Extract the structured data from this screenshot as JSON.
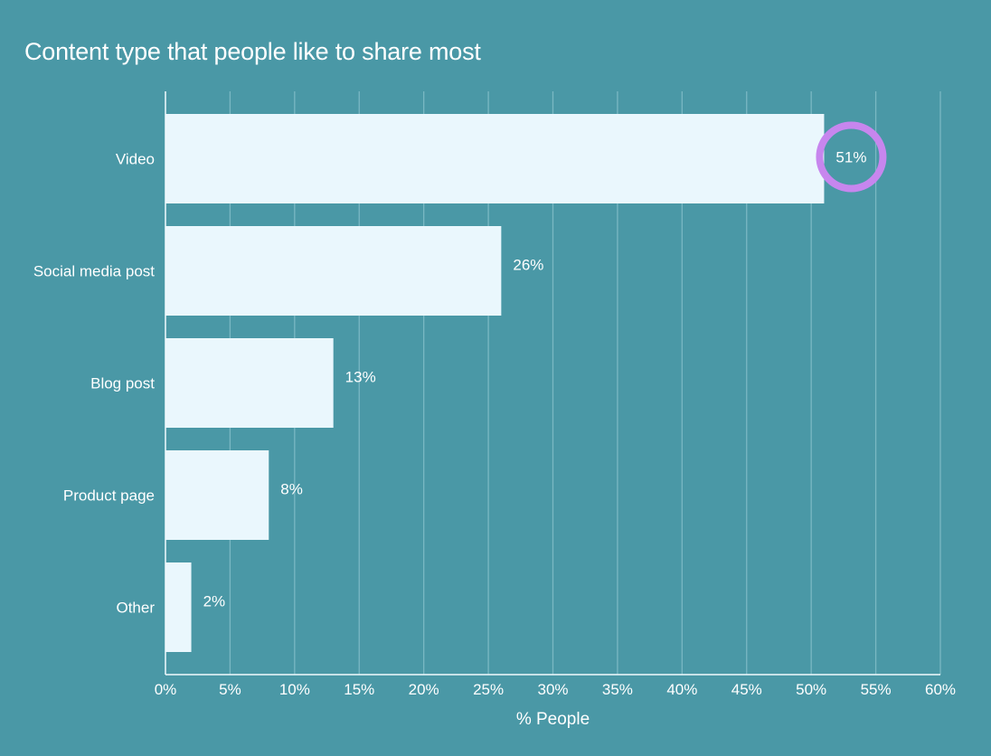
{
  "chart_data": {
    "type": "bar",
    "orientation": "horizontal",
    "title": "Content type that people like to share most",
    "xlabel": "% People",
    "ylabel": "",
    "categories": [
      "Video",
      "Social media post",
      "Blog post",
      "Product page",
      "Other"
    ],
    "values": [
      51,
      26,
      13,
      8,
      2
    ],
    "data_labels": [
      "51%",
      "26%",
      "13%",
      "8%",
      "2%"
    ],
    "xlim": [
      0,
      60
    ],
    "xticks": [
      0,
      5,
      10,
      15,
      20,
      25,
      30,
      35,
      40,
      45,
      50,
      55,
      60
    ],
    "xtick_labels": [
      "0%",
      "5%",
      "10%",
      "15%",
      "20%",
      "25%",
      "30%",
      "35%",
      "40%",
      "45%",
      "50%",
      "55%",
      "60%"
    ],
    "grid": true,
    "legend": "none",
    "highlight": {
      "category": "Video",
      "style": "circle"
    },
    "colors": {
      "background": "#4a98a6",
      "bar": "#eaf7fd",
      "grid": "#7ab8c3",
      "axis": "#f1fafd",
      "text": "#ffffff",
      "highlight": "#c786ee"
    }
  }
}
